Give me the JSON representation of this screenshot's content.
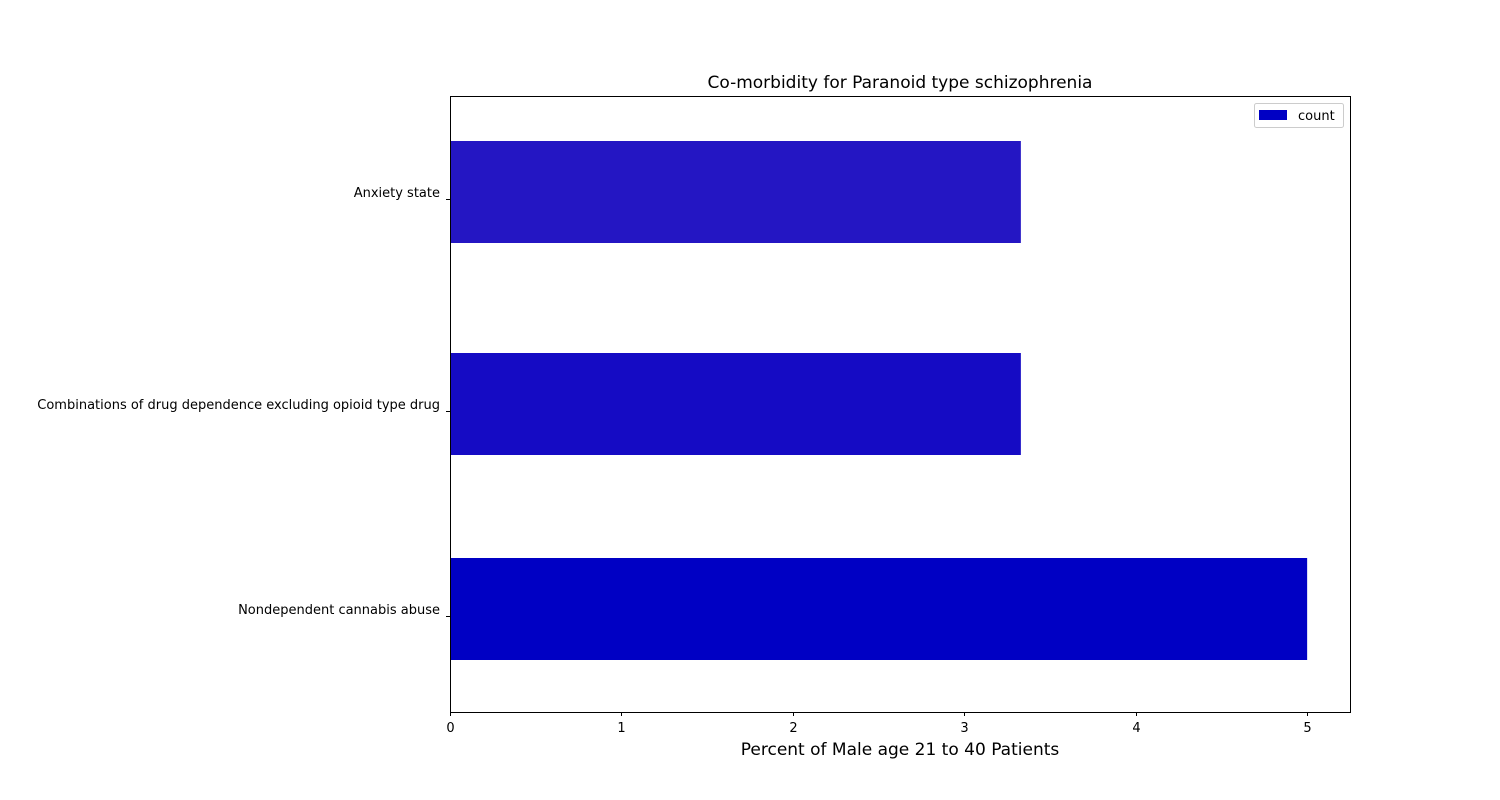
{
  "chart_data": {
    "type": "bar",
    "orientation": "horizontal",
    "title": "Co-morbidity for Paranoid type schizophrenia",
    "xlabel": "Percent of Male age 21 to 40 Patients",
    "ylabel": "",
    "xlim": [
      0,
      5.25
    ],
    "xticks": [
      0,
      1,
      2,
      3,
      4,
      5
    ],
    "categories": [
      "Anxiety state",
      "Combinations of drug dependence excluding opioid type drug",
      "Nondependent cannabis abuse"
    ],
    "series": [
      {
        "name": "count",
        "values": [
          3.33,
          3.33,
          5.0
        ],
        "colors": [
          "#2416c3",
          "#150bc4",
          "#0000c4"
        ]
      }
    ],
    "legend": {
      "position": "top-right",
      "entries": [
        "count"
      ],
      "swatch_color": "#0000c4"
    },
    "grid": false
  }
}
